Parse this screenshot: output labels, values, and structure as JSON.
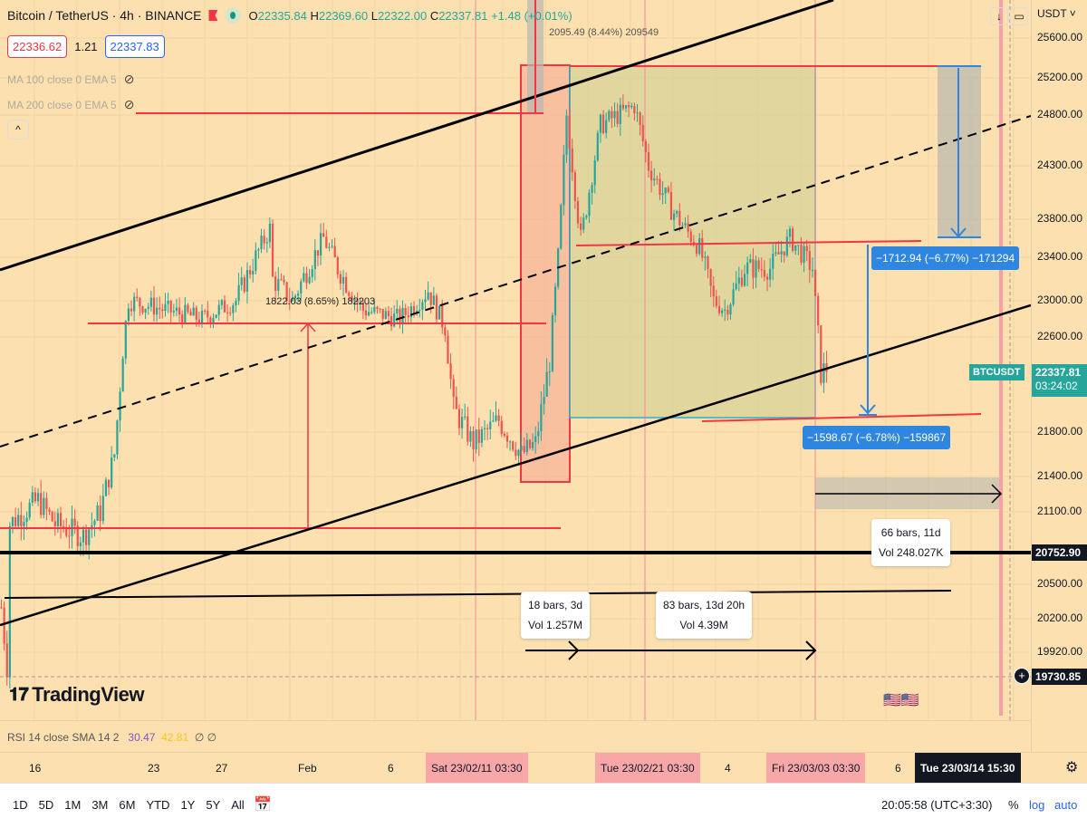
{
  "header": {
    "symbol": "Bitcoin / TetherUS · 4h · BINANCE",
    "open": "22335.84",
    "high": "22369.60",
    "low": "22322.00",
    "close": "22337.81",
    "change": "+1.48 (+0.01%)",
    "o": "O",
    "h": "H",
    "l": "L",
    "c": "C"
  },
  "bid": "22336.62",
  "spread": "1.21",
  "ask": "22337.83",
  "indicators": [
    {
      "label": "MA 100 close 0 EMA 5",
      "icon": "eye-off-icon"
    },
    {
      "label": "MA 200 close 0 EMA 5",
      "icon": "eye-off-icon"
    }
  ],
  "collapse_label": "^",
  "currency": "USDT ˅",
  "price_ticks": [
    "25600.00",
    "25200.00",
    "24800.00",
    "24300.00",
    "23800.00",
    "23400.00",
    "23000.00",
    "22600.00",
    "21800.00",
    "21400.00",
    "21100.00",
    "20500.00",
    "20200.00",
    "19920.00"
  ],
  "last_price": {
    "symbol": "BTCUSDT",
    "price": "22337.81",
    "countdown": "03:24:02",
    "color": "#26a69a"
  },
  "hline_price": "20752.90",
  "crosshair_price": "19730.85",
  "measures": {
    "top_range": "2095.49 (8.44%) 209549",
    "mid_range": "1822.03 (8.65%) 182203",
    "drop1": "−1712.94 (−6.77%) −171294",
    "drop2": "−1598.67 (−6.78%) −159867",
    "span1": {
      "line1": "18 bars, 3d",
      "line2": "Vol 1.257M"
    },
    "span2": {
      "line1": "83 bars, 13d 20h",
      "line2": "Vol 4.39M"
    },
    "span3": {
      "line1": "66 bars, 11d",
      "line2": "Vol 248.027K"
    }
  },
  "logo": "TradingView",
  "rsi": {
    "label": "RSI 14 close SMA 14 2",
    "v1": "30.47",
    "v2": "42.81",
    "v3": "∅ ∅"
  },
  "time_labels": [
    "16",
    "23",
    "27",
    "Feb",
    "6",
    "4",
    "6"
  ],
  "time_highlights": [
    "Sat 23/02/11   03:30",
    "Tue 23/02/21   03:30",
    "Fri 23/03/03   03:30"
  ],
  "crosshair_time": "Tue 23/03/14   15:30",
  "ranges": [
    "1D",
    "5D",
    "1M",
    "3M",
    "6M",
    "YTD",
    "1Y",
    "5Y",
    "All"
  ],
  "clock": "20:05:58 (UTC+3:30)",
  "scale_opts": {
    "percent": "%",
    "log": "log",
    "auto": "auto"
  },
  "colors": {
    "bg": "#fde0b0",
    "up": "#26a69a",
    "down": "#ef5350",
    "drawing_red": "#f23645",
    "measure_blue": "#2f86e0"
  },
  "chart_data": {
    "type": "candlestick",
    "timeframe": "4h",
    "approx_close_waypoints": [
      [
        0,
        20300
      ],
      [
        2,
        19800
      ],
      [
        3,
        21000
      ],
      [
        13,
        21200
      ],
      [
        19,
        21000
      ],
      [
        29,
        20900
      ],
      [
        35,
        21100
      ],
      [
        40,
        21600
      ],
      [
        43,
        22500
      ],
      [
        45,
        23000
      ],
      [
        58,
        22900
      ],
      [
        71,
        22800
      ],
      [
        83,
        23000
      ],
      [
        95,
        23700
      ],
      [
        96,
        23200
      ],
      [
        103,
        23000
      ],
      [
        114,
        23600
      ],
      [
        119,
        23300
      ],
      [
        128,
        22900
      ],
      [
        141,
        22800
      ],
      [
        151,
        23100
      ],
      [
        157,
        22700
      ],
      [
        160,
        22000
      ],
      [
        167,
        21700
      ],
      [
        176,
        21900
      ],
      [
        184,
        21600
      ],
      [
        189,
        21700
      ],
      [
        194,
        22400
      ],
      [
        197,
        23400
      ],
      [
        200,
        24800
      ],
      [
        205,
        23600
      ],
      [
        212,
        24700
      ],
      [
        224,
        24900
      ],
      [
        229,
        24300
      ],
      [
        237,
        23900
      ],
      [
        247,
        23500
      ],
      [
        252,
        23000
      ],
      [
        256,
        22900
      ],
      [
        263,
        23300
      ],
      [
        272,
        23300
      ],
      [
        279,
        23600
      ],
      [
        287,
        23300
      ],
      [
        290,
        22300
      ],
      [
        292,
        22338
      ]
    ]
  }
}
